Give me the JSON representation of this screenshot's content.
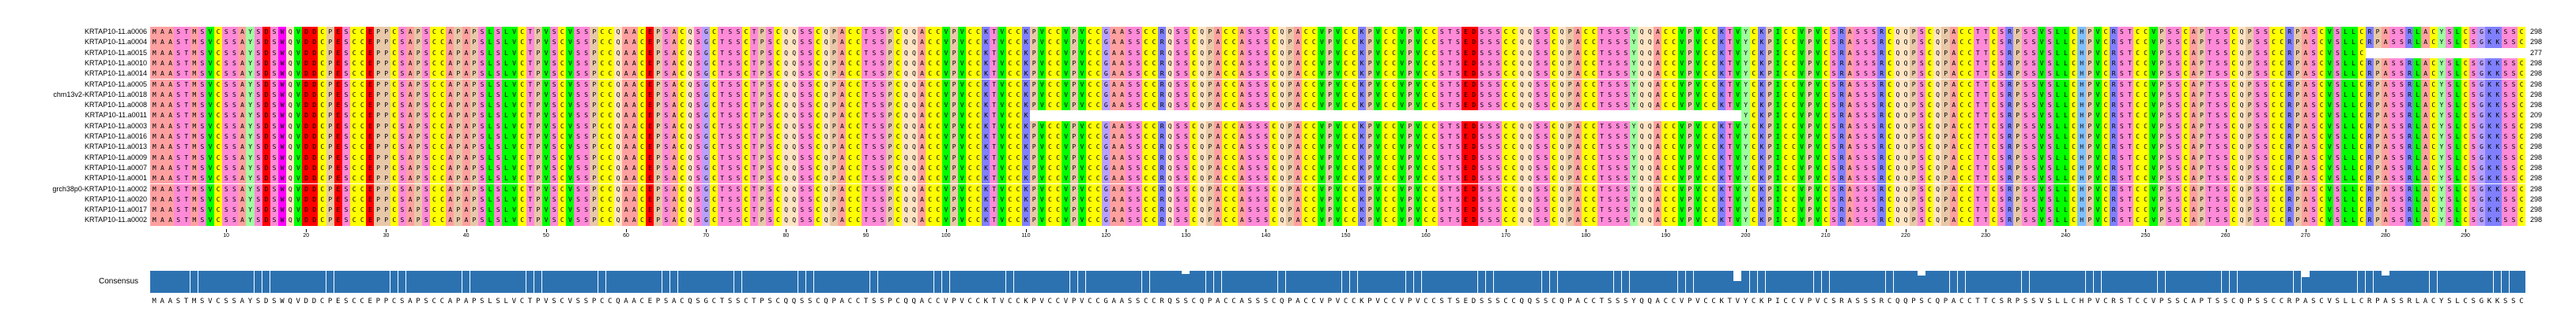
{
  "alignment": {
    "sequence_names": [
      "KRTAP10-11.a0006",
      "KRTAP10-11.a0004",
      "KRTAP10-11.a0015",
      "KRTAP10-11.a0010",
      "KRTAP10-11.a0014",
      "KRTAP10-11.a0005",
      "chm13v2-KRTAP10-11.a0018",
      "KRTAP10-11.a0008",
      "KRTAP10-11.a0011",
      "KRTAP10-11.a0003",
      "KRTAP10-11.a0016",
      "KRTAP10-11.a0013",
      "KRTAP10-11.a0009",
      "KRTAP10-11.a0007",
      "KRTAP10-11.a0001",
      "grch38p0-KRTAP10-11.a0002",
      "KRTAP10-11.a0020",
      "KRTAP10-11.a0017",
      "KRTAP10-11.a0002"
    ],
    "sequence_lengths": [
      "298",
      "298",
      "277",
      "298",
      "298",
      "298",
      "298",
      "298",
      "209",
      "298",
      "298",
      "298",
      "298",
      "298",
      "298",
      "298",
      "298",
      "298",
      "298"
    ],
    "gap_ranges": [
      null,
      null,
      [
        277,
        298
      ],
      null,
      null,
      null,
      null,
      null,
      [
        110,
        199
      ],
      null,
      null,
      null,
      null,
      null,
      null,
      null,
      null,
      null,
      null
    ],
    "consensus_sequence": "MAASTMSVCSSAYSDSWQVDDCPESCCEPPCSAPSCCAPAPSLSLVCTPVSCVSSPCCQAACEPSACQSGCTSSCTPSCQQSSCQPACCTSSPCQQACCVPVCCKTVCCKPVCCVPVCCGAASSCCRQSSCQPACCASSSCQPACCVPVCCKPVCCVPVCCSTSEDSSSCCQQSSCQPACCTSSSYQQACCVPVCCKTVYCKPICCVPVCSRASSSRCQQPSCQPACCTTCSRPSSVSLLCHPVCRSTCCVPSSCAPTSSCQPSSCCRPASCVSLLCRPASSRLACYSLCSGKKSSC",
    "consensus_label": "Consensus",
    "position_ticks": [
      "10",
      "20",
      "30",
      "40",
      "50",
      "60",
      "70",
      "80",
      "90",
      "100",
      "110",
      "120",
      "130",
      "140",
      "150",
      "160",
      "170",
      "180",
      "190",
      "200",
      "210",
      "220",
      "230",
      "240",
      "250",
      "260",
      "270",
      "280",
      "290"
    ],
    "residue_colors": {
      "M": "#ffa0a0",
      "A": "#ffa0a0",
      "S": "#ff8ad8",
      "T": "#ff8ad8",
      "C": "#ffff00",
      "V": "#00ff00",
      "L": "#00ff00",
      "I": "#00ff00",
      "Y": "#9fff9f",
      "F": "#9fff9f",
      "W": "#ff00ff",
      "P": "#e8c8a8",
      "Q": "#ffe4c4",
      "E": "#ff0000",
      "D": "#ff0000",
      "K": "#8080ff",
      "R": "#8080ff",
      "H": "#80c0ff",
      "G": "#b8a0ff",
      "N": "#ffe4c4"
    },
    "gap_color": "#ffffff",
    "consensus_bar_color": "#2c72b1"
  }
}
